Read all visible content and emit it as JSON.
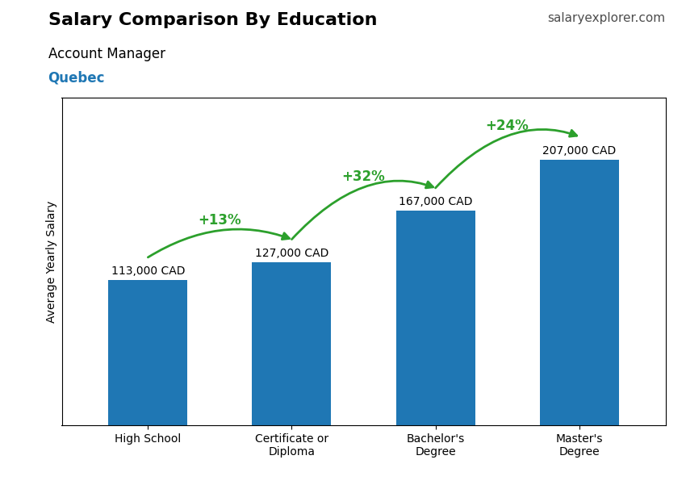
{
  "chart_data": {
    "type": "bar",
    "title": "Salary Comparison By Education",
    "subtitle": "Account Manager",
    "ylabel": "Average Yearly Salary",
    "categories": [
      "High School",
      "Certificate or\nDiploma",
      "Bachelor's\nDegree",
      "Master's\nDegree"
    ],
    "values": [
      113000,
      127000,
      167000,
      207000
    ],
    "value_labels": [
      "113,000 CAD",
      "127,000 CAD",
      "167,000 CAD",
      "207,000 CAD"
    ],
    "data_labels": true,
    "ylim": [
      0,
      255000
    ],
    "tick_labels": "x",
    "grid": false,
    "annotations": [
      {
        "text": "Quebec"
      },
      {
        "text": "salaryexplorer.com"
      },
      {
        "text": "+13%",
        "from": "High School",
        "to": "Certificate or\nDiploma"
      },
      {
        "text": "+32%",
        "from": "Certificate or\nDiploma",
        "to": "Bachelor's\nDegree"
      },
      {
        "text": "+24%",
        "from": "Bachelor's\nDegree",
        "to": "Master's\nDegree"
      }
    ]
  }
}
